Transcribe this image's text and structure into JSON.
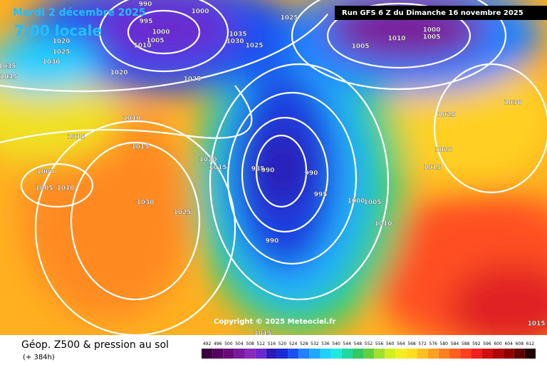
{
  "header": {
    "date": "Mardi 2 décembre 2025",
    "time": "7:00 locale",
    "run": "Run GFS 6 Z du Dimanche 16 novembre 2025"
  },
  "copyright": "Copyright © 2025 Meteociel.fr",
  "footer": {
    "title": "Géop. Z500 & pression au sol",
    "subtitle": "(+ 384h)"
  },
  "isobar_labels": [
    "990",
    "1000",
    "995",
    "1000",
    "1005",
    "1010",
    "1020",
    "1025",
    "1030",
    "1035",
    "1035",
    "1020",
    "1035",
    "1030",
    "1025",
    "1025",
    "1025",
    "1010",
    "1015",
    "1015",
    "1020",
    "1015",
    "1005",
    "1010",
    "1000",
    "1030",
    "1025",
    "985",
    "990",
    "990",
    "995",
    "1000",
    "1005",
    "1010",
    "990",
    "1010",
    "1005",
    "1000",
    "1005",
    "1025",
    "1030",
    "1020",
    "1015",
    "1015",
    "1015"
  ],
  "legend": {
    "values": [
      492,
      496,
      500,
      504,
      508,
      512,
      516,
      520,
      524,
      528,
      532,
      536,
      540,
      544,
      548,
      552,
      556,
      560,
      564,
      568,
      572,
      576,
      580,
      584,
      588,
      592,
      596,
      600,
      604,
      608,
      612
    ],
    "colors": [
      "#3a0040",
      "#550060",
      "#6a0a7a",
      "#7a1a9a",
      "#8a2ab8",
      "#6a2ad0",
      "#2a1ab8",
      "#1a2ad8",
      "#1a50f0",
      "#2080ff",
      "#20a8ff",
      "#20d0ff",
      "#20e8e0",
      "#20d8a0",
      "#30c860",
      "#60d040",
      "#a0e030",
      "#d0f020",
      "#f0f020",
      "#ffe020",
      "#ffc020",
      "#ffa020",
      "#ff8020",
      "#ff6020",
      "#ff4020",
      "#f02020",
      "#d01010",
      "#b00808",
      "#900000",
      "#600000",
      "#200000"
    ]
  }
}
